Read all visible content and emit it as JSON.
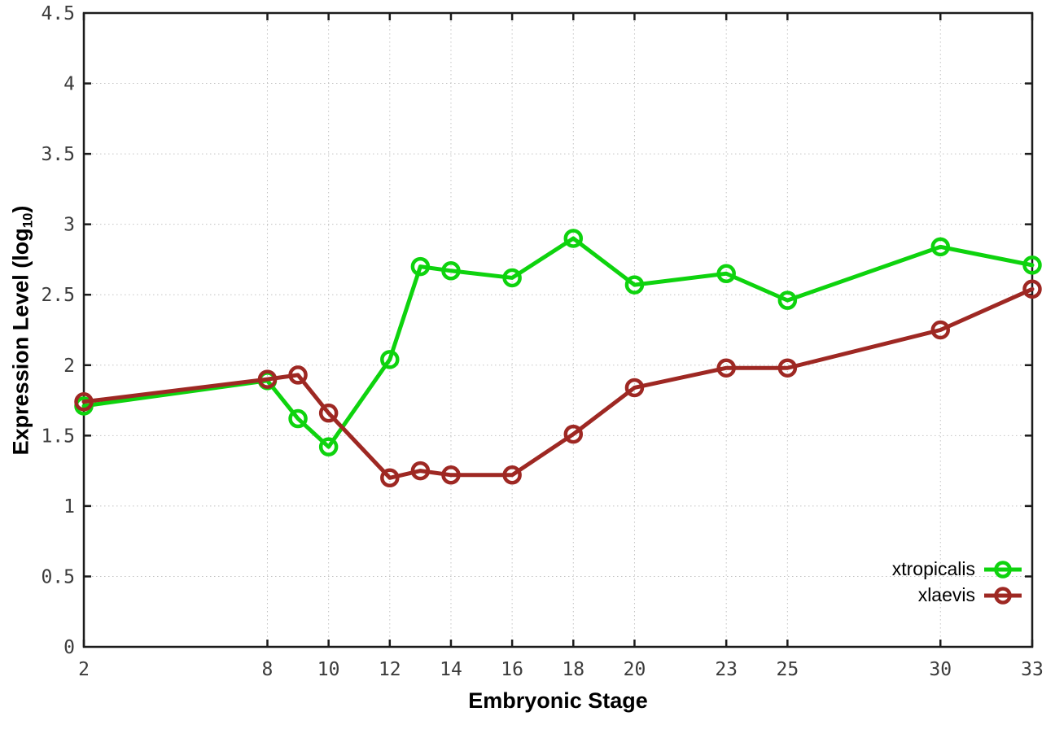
{
  "chart_data": {
    "type": "line",
    "title": "",
    "xlabel": "Embryonic Stage",
    "ylabel": "Expression Level (log10)",
    "ylabel_parts": {
      "main": "Expression Level (log",
      "sub": "10",
      "close": ")"
    },
    "x": [
      2,
      8,
      9,
      10,
      12,
      13,
      14,
      16,
      18,
      20,
      23,
      25,
      30,
      33
    ],
    "series": [
      {
        "name": "xtropicalis",
        "color": "#0ed30e",
        "values": [
          1.71,
          1.89,
          1.62,
          1.42,
          2.04,
          2.7,
          2.67,
          2.62,
          2.9,
          2.57,
          2.65,
          2.46,
          2.84,
          2.71
        ]
      },
      {
        "name": "xlaevis",
        "color": "#9e2823",
        "values": [
          1.74,
          1.9,
          1.93,
          1.66,
          1.2,
          1.25,
          1.22,
          1.22,
          1.51,
          1.84,
          1.98,
          1.98,
          2.25,
          2.54
        ]
      }
    ],
    "xlim": [
      2,
      33
    ],
    "ylim": [
      0,
      4.5
    ],
    "x_ticks": [
      2,
      8,
      10,
      12,
      14,
      16,
      18,
      20,
      23,
      25,
      30,
      33
    ],
    "x_tick_labels": [
      "2",
      "8",
      "10",
      "12",
      "14",
      "16",
      "18",
      "20",
      "23",
      "25",
      "30",
      "33"
    ],
    "y_ticks": [
      0,
      0.5,
      1,
      1.5,
      2,
      2.5,
      3,
      3.5,
      4,
      4.5
    ],
    "y_tick_labels": [
      "0",
      "0.5",
      "1",
      "1.5",
      "2",
      "2.5",
      "3",
      "3.5",
      "4",
      "4.5"
    ],
    "grid": true,
    "legend_position": "bottom-right"
  },
  "colors": {
    "background": "#ffffff",
    "border": "#1c1c1c",
    "grid": "#c4c4c4",
    "tick_text": "#3c3c3c",
    "axis_title_text": "#000000"
  }
}
